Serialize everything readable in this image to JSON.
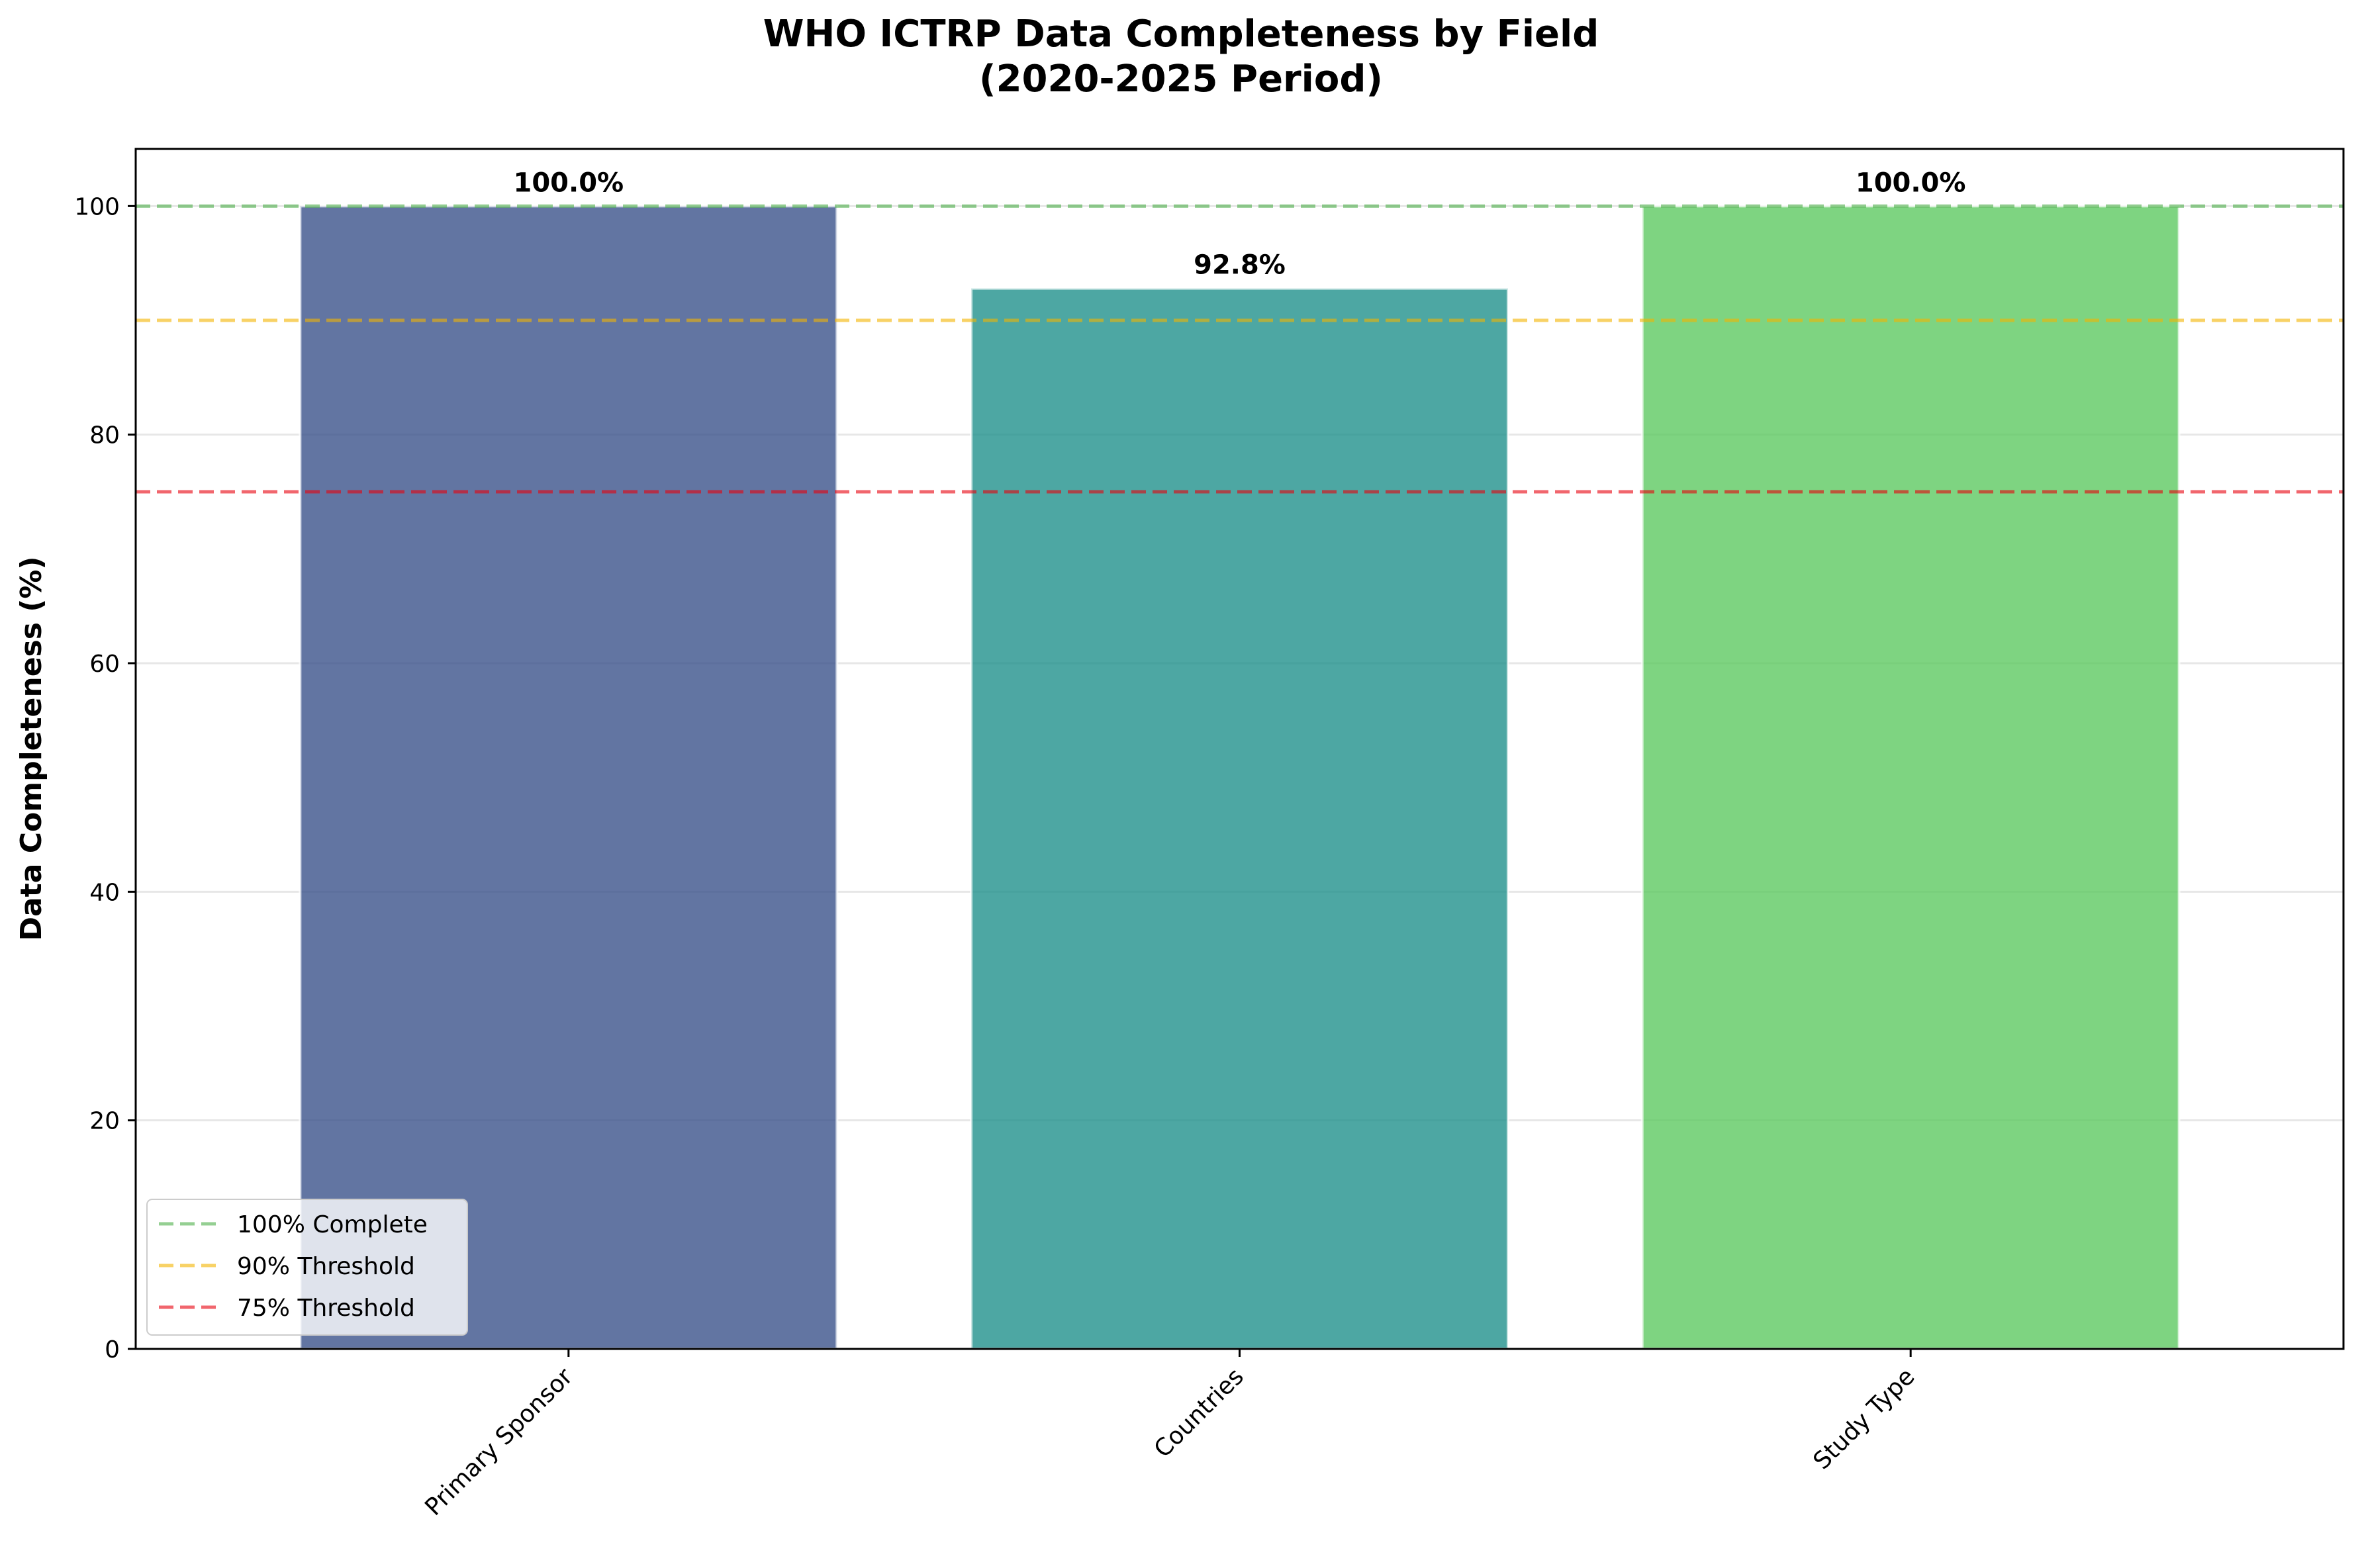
{
  "chart_data": {
    "type": "bar",
    "title_line1": "WHO ICTRP Data Completeness by Field",
    "title_line2": "(2020-2025 Period)",
    "xlabel": "",
    "ylabel": "Data Completeness (%)",
    "categories": [
      "Primary Sponsor",
      "Countries",
      "Study Type"
    ],
    "values": [
      100.0,
      92.8,
      100.0
    ],
    "value_labels": [
      "100.0%",
      "92.8%",
      "100.0%"
    ],
    "bar_colors": [
      "#3b528b",
      "#21918c",
      "#5ec962"
    ],
    "ylim": [
      0,
      105
    ],
    "yticks": [
      0,
      20,
      40,
      60,
      80,
      100
    ],
    "ytick_labels": [
      "0",
      "20",
      "40",
      "60",
      "80",
      "100"
    ],
    "grid": "horizontal",
    "reference_lines": [
      {
        "value": 100,
        "label": "100% Complete",
        "color": "#4daf4a"
      },
      {
        "value": 90,
        "label": "90% Threshold",
        "color": "#f4b400"
      },
      {
        "value": 75,
        "label": "75% Threshold",
        "color": "#e8000b"
      }
    ],
    "legend_position": "lower-left"
  }
}
